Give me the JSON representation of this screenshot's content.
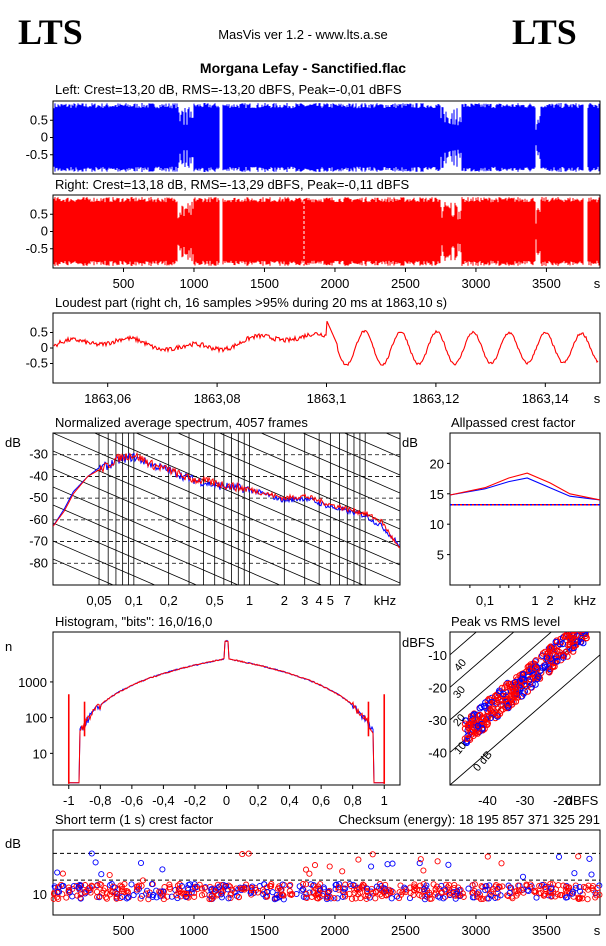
{
  "header": {
    "logo_left": "LTS",
    "logo_right": "LTS",
    "version": "MasVis ver 1.2 - www.lts.a.se",
    "filename": "Morgana Lefay - Sanctified.flac"
  },
  "colors": {
    "left": "#0000ff",
    "right": "#ff0000",
    "grid": "#000000"
  },
  "chart_data": [
    {
      "id": "left-waveform",
      "type": "area",
      "title": "Left: Crest=13,20 dB, RMS=-13,20 dBFS, Peak=-0,01 dBFS",
      "yticks": [
        "0.5",
        "0",
        "-0.5"
      ],
      "ylim": [
        -1,
        1
      ],
      "xlim": [
        0,
        3880
      ],
      "gaps_s": [
        [
          1180,
          1200
        ],
        [
          3760,
          3790
        ]
      ]
    },
    {
      "id": "right-waveform",
      "type": "area",
      "title": "Right: Crest=13,18 dB, RMS=-13,29 dBFS, Peak=-0,11 dBFS",
      "yticks": [
        "0.5",
        "0",
        "-0.5"
      ],
      "xticks": [
        "500",
        "1000",
        "1500",
        "2000",
        "2500",
        "3000",
        "3500"
      ],
      "xunit": "s",
      "ylim": [
        -1,
        1
      ],
      "xlim": [
        0,
        3880
      ],
      "gaps_s": [
        [
          1180,
          1200
        ],
        [
          3760,
          3790
        ]
      ]
    },
    {
      "id": "loudest-part",
      "type": "line",
      "title": "Loudest part (right ch, 16 samples >95% during 20 ms at 1863,10 s)",
      "yticks": [
        "0.5",
        "0",
        "-0.5"
      ],
      "xticks": [
        "1863,06",
        "1863,08",
        "1863,1",
        "1863,12",
        "1863,14"
      ],
      "xunit": "s",
      "xlim": [
        1863.05,
        1863.15
      ],
      "ylim": [
        -1,
        1
      ]
    },
    {
      "id": "spectrum",
      "type": "line",
      "title": "Normalized average spectrum, 4057 frames",
      "ylabel": "dB",
      "yticks": [
        "-30",
        "-40",
        "-50",
        "-60",
        "-70",
        "-80"
      ],
      "xticks": [
        "0,05",
        "0,1",
        "0,2",
        "0,5",
        "1",
        "2",
        "3",
        "4",
        "5",
        "7"
      ],
      "xunit": "kHz",
      "xscale": "log",
      "ylim": [
        -90,
        -20
      ],
      "x": [
        0.02,
        0.025,
        0.03,
        0.04,
        0.05,
        0.06,
        0.07,
        0.08,
        0.1,
        0.15,
        0.2,
        0.3,
        0.5,
        1,
        2,
        3,
        5,
        7,
        10,
        14,
        20
      ],
      "series": [
        {
          "color": "#0000ff",
          "values": [
            -63,
            -55,
            -47,
            -40,
            -36,
            -35,
            -33,
            -32,
            -31,
            -35,
            -37,
            -41,
            -44,
            -46,
            -51,
            -50,
            -54,
            -56,
            -58,
            -63,
            -72
          ]
        },
        {
          "color": "#ff0000",
          "values": [
            -63,
            -56,
            -48,
            -40,
            -37,
            -35,
            -32,
            -31,
            -30,
            -35,
            -37,
            -41,
            -43,
            -46,
            -50,
            -49,
            -53,
            -55,
            -57,
            -61,
            -74
          ]
        }
      ]
    },
    {
      "id": "allpassed-crest",
      "type": "line",
      "title": "Allpassed crest factor",
      "ylabel": "dB",
      "yticks": [
        "20",
        "15",
        "10",
        "5"
      ],
      "xticks": [
        "0,1",
        "1",
        "2",
        "kHz"
      ],
      "xscale": "log",
      "ylim": [
        0,
        25
      ],
      "x": [
        0.02,
        0.1,
        0.3,
        0.7,
        2,
        5,
        20
      ],
      "series": [
        {
          "color": "#0000ff",
          "values": [
            14.8,
            15.8,
            17,
            17.6,
            16,
            14.6,
            14
          ]
        },
        {
          "color": "#ff0000",
          "values": [
            14.8,
            16,
            17.6,
            18.4,
            16.8,
            15,
            14
          ]
        }
      ],
      "reference_dB": 13.2
    },
    {
      "id": "histogram",
      "type": "line",
      "title": "Histogram, \"bits\": 16,0/16,0",
      "ylabel": "n",
      "yticks": [
        "1000",
        "100",
        "10"
      ],
      "xticks": [
        "-1",
        "-0,8",
        "-0,6",
        "-0,4",
        "-0,2",
        "0",
        "0,2",
        "0,4",
        "0,6",
        "0,8",
        "1"
      ],
      "yscale": "log",
      "xlim": [
        -1.1,
        1.1
      ],
      "ylim": [
        1.3,
        25000
      ]
    },
    {
      "id": "peak-vs-rms",
      "type": "scatter",
      "title": "Peak vs RMS level",
      "ylabel": "dBFS",
      "xlabel": "dBFS",
      "yticks": [
        "-10",
        "-20",
        "-30",
        "-40"
      ],
      "xticks": [
        "-40",
        "-30",
        "-20"
      ],
      "diag_labels": [
        "40",
        "30",
        "20",
        "10",
        "0 dB"
      ],
      "xlim": [
        -50,
        -10
      ],
      "ylim": [
        -50,
        -3
      ]
    },
    {
      "id": "short-term-crest",
      "type": "scatter",
      "title": "Short term (1 s) crest factor",
      "checksum": "Checksum (energy):  18 195 857 371 325 291",
      "ylabel": "dB",
      "yticks": [
        "10"
      ],
      "xticks": [
        "500",
        "1000",
        "1500",
        "2000",
        "2500",
        "3000",
        "3500"
      ],
      "xunit": "s",
      "xlim": [
        0,
        3880
      ],
      "ylim": [
        5,
        25
      ]
    }
  ]
}
